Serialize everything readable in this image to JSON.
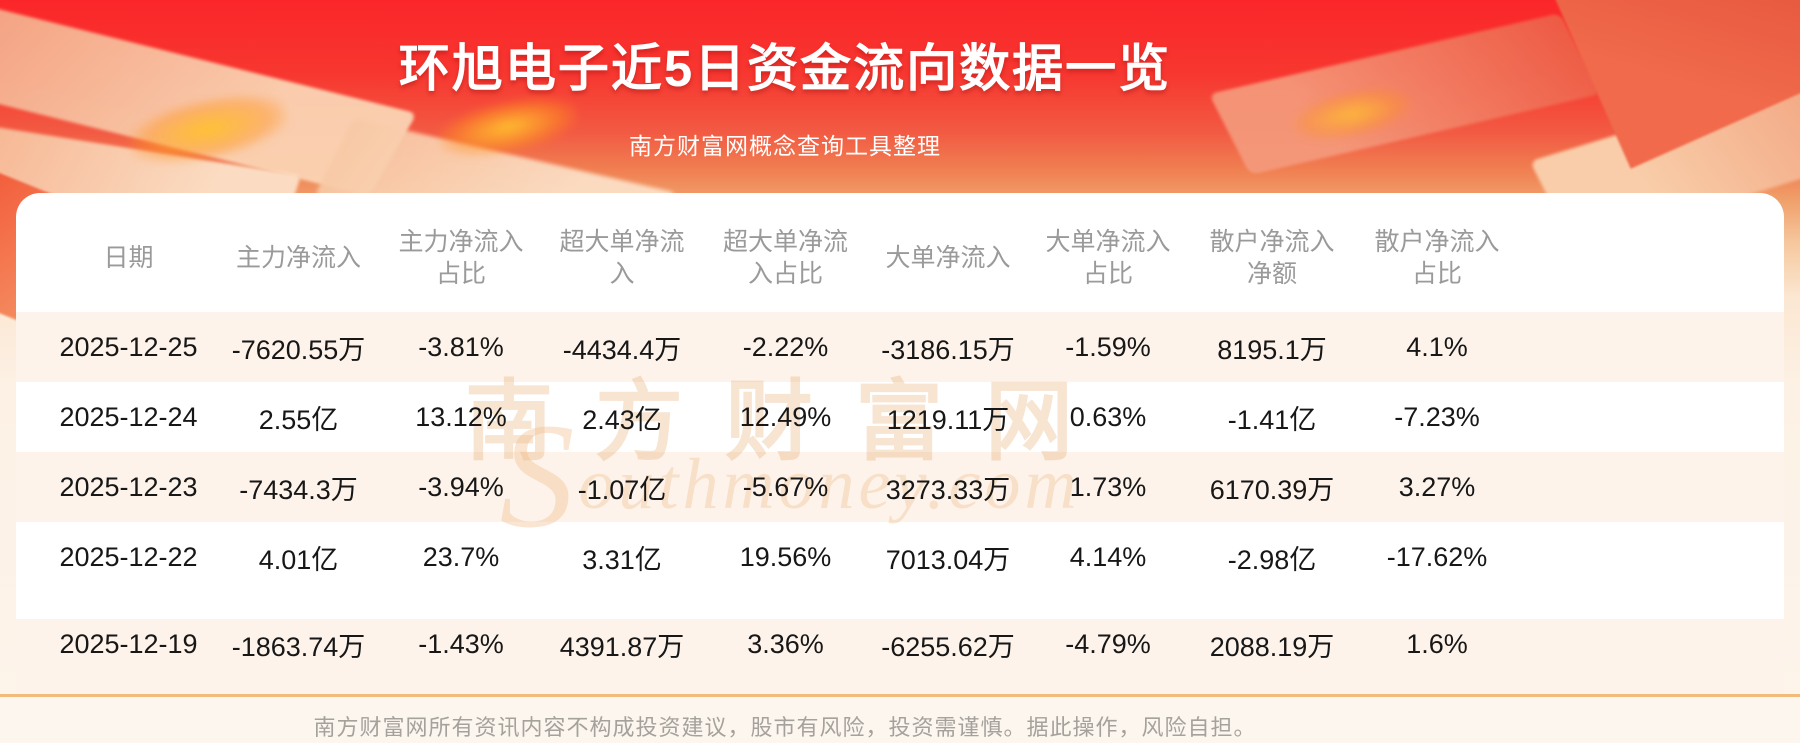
{
  "banner": {
    "title": "环旭电子近5日资金流向数据一览",
    "subtitle": "南方财富网概念查询工具整理"
  },
  "watermark": {
    "cn": "南方财富网",
    "en_initial": "S",
    "en_rest": "outhmoney.com"
  },
  "chart_data": {
    "type": "table",
    "title": "环旭电子近5日资金流向数据一览",
    "columns": [
      "日期",
      "主力净流入",
      "主力净流入占比",
      "超大单净流入",
      "超大单净流入占比",
      "大单净流入",
      "大单净流入占比",
      "散户净流入净额",
      "散户净流入占比"
    ],
    "rows": [
      [
        "2025-12-25",
        "-7620.55万",
        "-3.81%",
        "-4434.4万",
        "-2.22%",
        "-3186.15万",
        "-1.59%",
        "8195.1万",
        "4.1%"
      ],
      [
        "2025-12-24",
        "2.55亿",
        "13.12%",
        "2.43亿",
        "12.49%",
        "1219.11万",
        "0.63%",
        "-1.41亿",
        "-7.23%"
      ],
      [
        "2025-12-23",
        "-7434.3万",
        "-3.94%",
        "-1.07亿",
        "-5.67%",
        "3273.33万",
        "1.73%",
        "6170.39万",
        "3.27%"
      ],
      [
        "2025-12-22",
        "4.01亿",
        "23.7%",
        "3.31亿",
        "19.56%",
        "7013.04万",
        "4.14%",
        "-2.98亿",
        "-17.62%"
      ],
      [
        "2025-12-19",
        "-1863.74万",
        "-1.43%",
        "4391.87万",
        "3.36%",
        "-6255.62万",
        "-4.79%",
        "2088.19万",
        "1.6%"
      ]
    ]
  },
  "footer": {
    "disclaimer": "南方财富网所有资讯内容不构成投资建议，股市有风险，投资需谨慎。据此操作，风险自担。"
  },
  "colors": {
    "banner_red": "#fa2a2c",
    "banner_orange": "#f59c6e",
    "row_alt": "#fdf3ea",
    "divider": "#f2bb7b",
    "header_text": "#9a9a9a",
    "body_text": "#171717",
    "watermark": "#e6a468"
  }
}
